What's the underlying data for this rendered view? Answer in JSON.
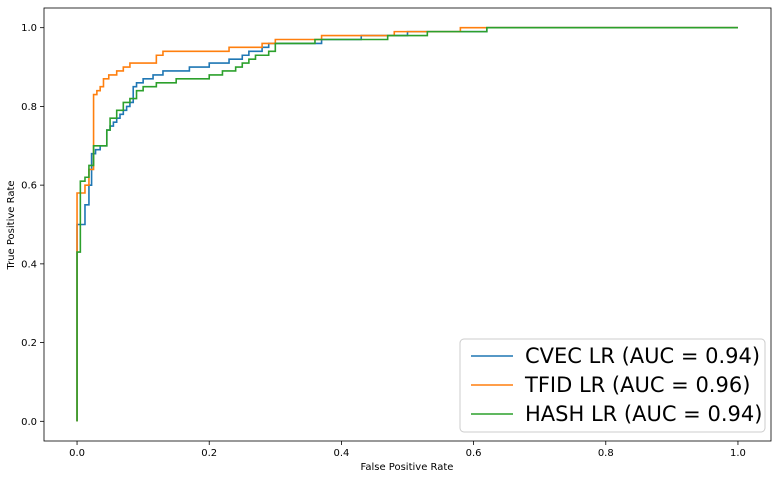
{
  "chart_data": {
    "type": "line",
    "title": "",
    "xlabel": "False Positive Rate",
    "ylabel": "True Positive Rate",
    "xlim": [
      -0.05,
      1.05
    ],
    "ylim": [
      -0.05,
      1.05
    ],
    "xticks": [
      "0.0",
      "0.2",
      "0.4",
      "0.6",
      "0.8",
      "1.0"
    ],
    "yticks": [
      "0.0",
      "0.2",
      "0.4",
      "0.6",
      "0.8",
      "1.0"
    ],
    "grid": false,
    "legend_position": "lower-right",
    "series": [
      {
        "name": "CVEC LR (AUC = 0.94)",
        "color": "#1f77b4",
        "x": [
          0,
          0,
          0.005,
          0.005,
          0.012,
          0.012,
          0.018,
          0.018,
          0.022,
          0.022,
          0.028,
          0.028,
          0.035,
          0.035,
          0.045,
          0.045,
          0.05,
          0.05,
          0.055,
          0.055,
          0.06,
          0.06,
          0.065,
          0.065,
          0.07,
          0.07,
          0.075,
          0.075,
          0.08,
          0.08,
          0.085,
          0.085,
          0.09,
          0.09,
          0.1,
          0.1,
          0.115,
          0.115,
          0.13,
          0.13,
          0.17,
          0.17,
          0.2,
          0.2,
          0.23,
          0.23,
          0.25,
          0.25,
          0.26,
          0.26,
          0.28,
          0.28,
          0.29,
          0.29,
          0.32,
          0.32,
          0.37,
          0.37,
          0.43,
          0.43,
          0.5,
          0.5,
          0.62,
          0.62,
          0.72,
          1.0
        ],
        "y": [
          0,
          0.5,
          0.5,
          0.5,
          0.5,
          0.55,
          0.55,
          0.6,
          0.6,
          0.68,
          0.68,
          0.69,
          0.69,
          0.7,
          0.7,
          0.74,
          0.74,
          0.75,
          0.75,
          0.76,
          0.76,
          0.77,
          0.77,
          0.78,
          0.78,
          0.79,
          0.79,
          0.8,
          0.8,
          0.81,
          0.81,
          0.85,
          0.85,
          0.86,
          0.86,
          0.87,
          0.87,
          0.88,
          0.88,
          0.89,
          0.89,
          0.9,
          0.9,
          0.91,
          0.91,
          0.92,
          0.92,
          0.93,
          0.93,
          0.94,
          0.94,
          0.95,
          0.95,
          0.96,
          0.96,
          0.96,
          0.96,
          0.97,
          0.97,
          0.98,
          0.98,
          0.99,
          0.99,
          1.0,
          1.0,
          1.0
        ]
      },
      {
        "name": "TFID LR (AUC = 0.96)",
        "color": "#ff7f0e",
        "x": [
          0,
          0,
          0.005,
          0.005,
          0.012,
          0.012,
          0.018,
          0.018,
          0.025,
          0.025,
          0.03,
          0.03,
          0.035,
          0.035,
          0.04,
          0.04,
          0.048,
          0.048,
          0.06,
          0.06,
          0.07,
          0.07,
          0.08,
          0.08,
          0.09,
          0.09,
          0.12,
          0.12,
          0.13,
          0.13,
          0.14,
          0.14,
          0.23,
          0.23,
          0.28,
          0.28,
          0.3,
          0.3,
          0.37,
          0.37,
          0.48,
          0.48,
          0.58,
          0.58,
          0.62,
          1.0
        ],
        "y": [
          0,
          0.58,
          0.58,
          0.58,
          0.58,
          0.6,
          0.6,
          0.64,
          0.64,
          0.83,
          0.83,
          0.84,
          0.84,
          0.85,
          0.85,
          0.87,
          0.87,
          0.88,
          0.88,
          0.89,
          0.89,
          0.9,
          0.9,
          0.91,
          0.91,
          0.91,
          0.91,
          0.93,
          0.93,
          0.94,
          0.94,
          0.94,
          0.94,
          0.95,
          0.95,
          0.96,
          0.96,
          0.97,
          0.97,
          0.98,
          0.98,
          0.99,
          0.99,
          1.0,
          1.0,
          1.0
        ]
      },
      {
        "name": "HASH LR (AUC = 0.94)",
        "color": "#2ca02c",
        "x": [
          0,
          0,
          0.005,
          0.005,
          0.012,
          0.012,
          0.018,
          0.018,
          0.025,
          0.025,
          0.035,
          0.035,
          0.045,
          0.045,
          0.05,
          0.05,
          0.06,
          0.06,
          0.07,
          0.07,
          0.08,
          0.08,
          0.09,
          0.09,
          0.1,
          0.1,
          0.12,
          0.12,
          0.15,
          0.15,
          0.2,
          0.2,
          0.22,
          0.22,
          0.24,
          0.24,
          0.25,
          0.25,
          0.26,
          0.26,
          0.27,
          0.27,
          0.29,
          0.29,
          0.3,
          0.3,
          0.36,
          0.36,
          0.47,
          0.47,
          0.53,
          0.53,
          0.62,
          0.62,
          0.72,
          1.0
        ],
        "y": [
          0,
          0.43,
          0.43,
          0.61,
          0.61,
          0.62,
          0.62,
          0.65,
          0.65,
          0.7,
          0.7,
          0.7,
          0.7,
          0.74,
          0.74,
          0.77,
          0.77,
          0.79,
          0.79,
          0.81,
          0.81,
          0.82,
          0.82,
          0.84,
          0.84,
          0.85,
          0.85,
          0.86,
          0.86,
          0.87,
          0.87,
          0.88,
          0.88,
          0.89,
          0.89,
          0.9,
          0.9,
          0.91,
          0.91,
          0.92,
          0.92,
          0.93,
          0.93,
          0.94,
          0.94,
          0.96,
          0.96,
          0.97,
          0.97,
          0.98,
          0.98,
          0.99,
          0.99,
          1.0,
          1.0,
          1.0
        ]
      }
    ]
  }
}
